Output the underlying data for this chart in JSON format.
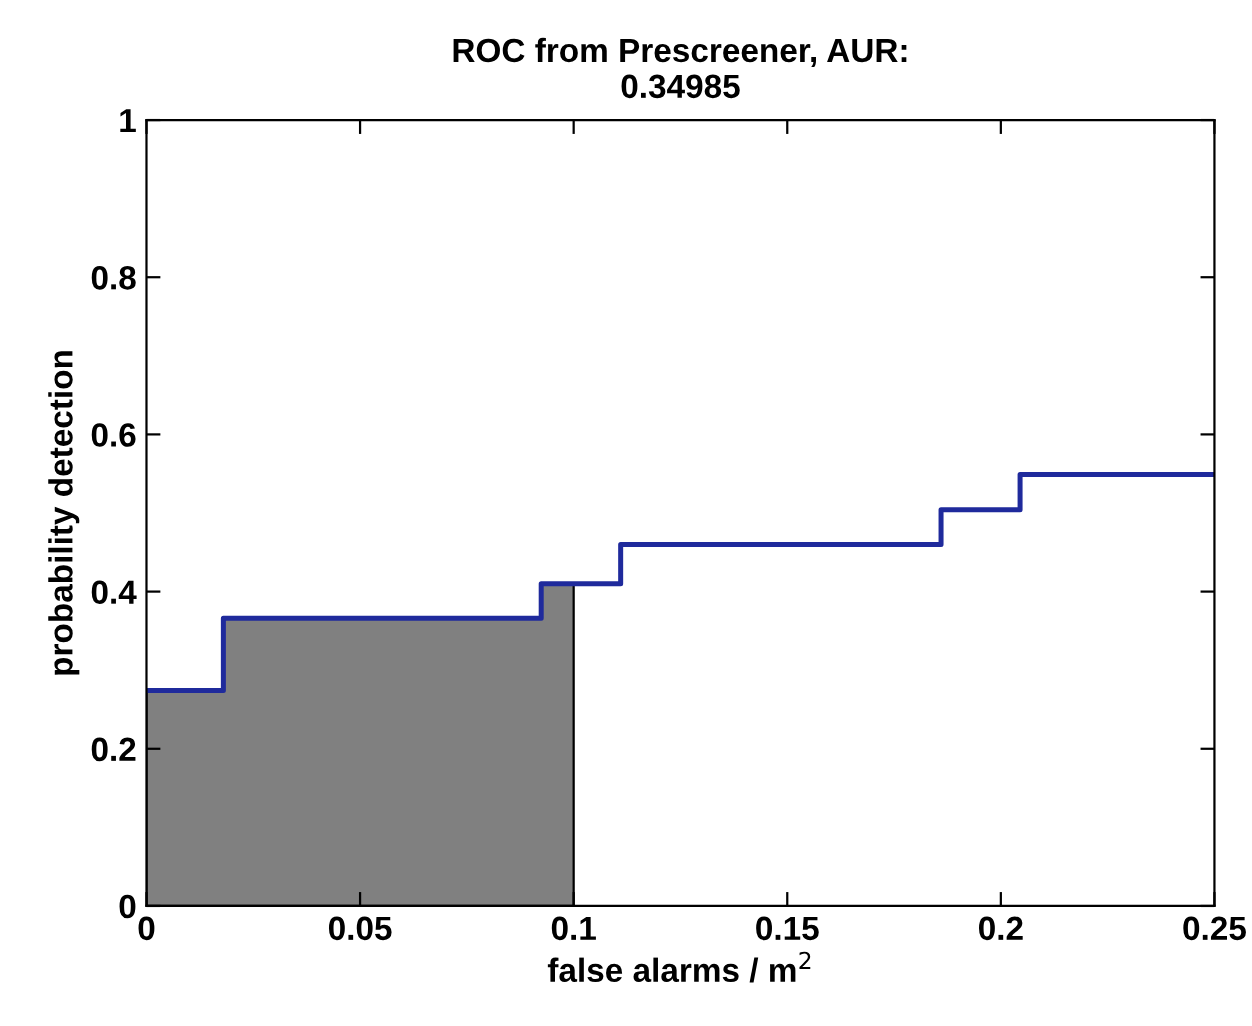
{
  "chart_data": {
    "type": "step",
    "title": "ROC from Prescreener, AUR:\n0.34985",
    "xlabel": "false alarms / m$^{2}$",
    "ylabel": "probability detection",
    "series": [
      {
        "type": "area",
        "color": "#808080",
        "x": [
          0,
          0.018,
          0.0924,
          0.1
        ],
        "values": [
          0.274,
          0.366,
          0.41,
          0.41
        ]
      },
      {
        "color": "#1f2a9c",
        "x": [
          0,
          0.018,
          0.0924,
          0.111,
          0.186,
          0.2045,
          0.25
        ],
        "values": [
          0.274,
          0.366,
          0.41,
          0.46,
          0.504,
          0.549,
          0.549
        ]
      }
    ],
    "xlim": [
      0,
      0.25
    ],
    "xticks": [
      0,
      0.05,
      0.1,
      0.15,
      0.2,
      0.25
    ],
    "ylim": [
      0,
      1
    ],
    "yticks": [
      0,
      0.2,
      0.4,
      0.6,
      0.8,
      1
    ],
    "grid": false,
    "legend": false
  }
}
